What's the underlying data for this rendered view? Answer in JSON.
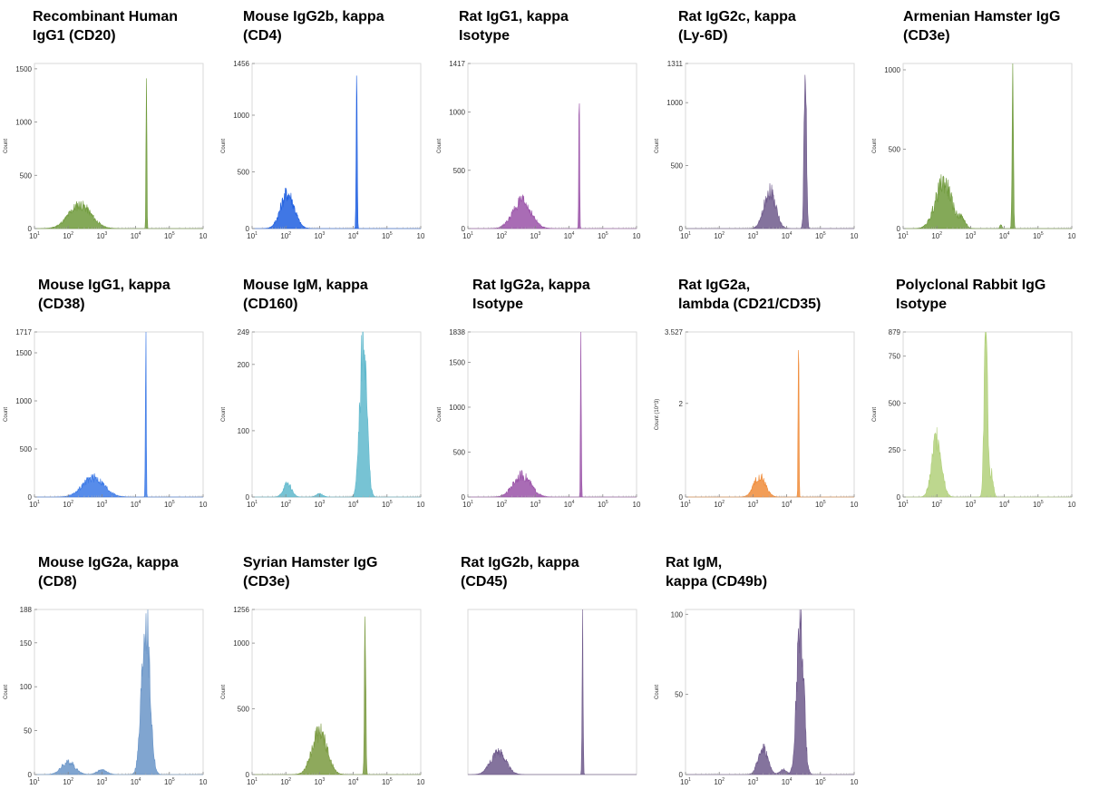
{
  "chart_data": [
    {
      "type": "area",
      "title": [
        "Recombinant Human",
        "IgG1 (CD20)"
      ],
      "ylabel": "Count",
      "yticks": [
        "0",
        "500",
        "1000",
        "1500"
      ],
      "ytick_values": [
        0,
        500,
        1000,
        1500
      ],
      "ymax": 1550,
      "xticks": [
        "10",
        "10",
        "10",
        "10",
        "10",
        "10"
      ],
      "xtick_exponents": [
        "1",
        "2",
        "3",
        "4",
        "5",
        ""
      ],
      "xlim": [
        1,
        6
      ],
      "color": "#6f9a3b",
      "peaks": [
        {
          "center": 2.35,
          "height": 220,
          "width": 0.33
        },
        {
          "center": 4.32,
          "height": 1500,
          "width": 0.012
        }
      ]
    },
    {
      "type": "area",
      "title": [
        "Mouse IgG2b, kappa",
        "(CD4)"
      ],
      "ylabel": "Count",
      "yticks": [
        "0",
        "500",
        "1000",
        "1456"
      ],
      "ytick_values": [
        0,
        500,
        1000,
        1456
      ],
      "ymax": 1456,
      "xticks": [
        "10",
        "10",
        "10",
        "10",
        "10",
        "10"
      ],
      "xtick_exponents": [
        "1",
        "2",
        "3",
        "4",
        "5",
        ""
      ],
      "xlim": [
        1,
        6
      ],
      "color": "#1f5fe0",
      "peaks": [
        {
          "center": 2.05,
          "height": 310,
          "width": 0.2
        },
        {
          "center": 4.1,
          "height": 1420,
          "width": 0.015
        }
      ]
    },
    {
      "type": "area",
      "title": [
        "Rat IgG1, kappa",
        "Isotype"
      ],
      "ylabel": "Count",
      "yticks": [
        "0",
        "500",
        "1000",
        "1417"
      ],
      "ytick_values": [
        0,
        500,
        1000,
        1417
      ],
      "ymax": 1417,
      "xticks": [
        "10",
        "10",
        "10",
        "10",
        "10",
        "10"
      ],
      "xtick_exponents": [
        "1",
        "2",
        "3",
        "4",
        "5",
        ""
      ],
      "xlim": [
        1,
        6
      ],
      "color": "#9a52a8",
      "peaks": [
        {
          "center": 2.6,
          "height": 230,
          "width": 0.27
        },
        {
          "center": 4.3,
          "height": 1410,
          "width": 0.012
        }
      ]
    },
    {
      "type": "area",
      "title": [
        "Rat IgG2c, kappa",
        "(Ly-6D)"
      ],
      "ylabel": "Count",
      "yticks": [
        "0",
        "500",
        "1000",
        "1311"
      ],
      "ytick_values": [
        0,
        500,
        1000,
        1311
      ],
      "ymax": 1311,
      "xticks": [
        "10",
        "10",
        "10",
        "10",
        "10",
        "10"
      ],
      "xtick_exponents": [
        "1",
        "2",
        "3",
        "4",
        "5",
        ""
      ],
      "xlim": [
        1,
        6
      ],
      "color": "#6f5a8c",
      "peaks": [
        {
          "center": 3.5,
          "height": 300,
          "width": 0.17
        },
        {
          "center": 4.55,
          "height": 1290,
          "width": 0.035
        }
      ]
    },
    {
      "type": "area",
      "title": [
        "Armenian Hamster IgG",
        "(CD3e)"
      ],
      "ylabel": "Count",
      "yticks": [
        "0",
        "500",
        "1000"
      ],
      "ytick_values": [
        0,
        500,
        1000
      ],
      "ymax": 1040,
      "xticks": [
        "10",
        "10",
        "10",
        "10",
        "10",
        "10"
      ],
      "xtick_exponents": [
        "1",
        "2",
        "3",
        "4",
        "5",
        ""
      ],
      "xlim": [
        1,
        6
      ],
      "color": "#6f9a3b",
      "peaks": [
        {
          "center": 2.2,
          "height": 290,
          "width": 0.24
        },
        {
          "center": 2.75,
          "height": 50,
          "width": 0.1
        },
        {
          "center": 3.9,
          "height": 25,
          "width": 0.03
        },
        {
          "center": 4.25,
          "height": 1000,
          "width": 0.02
        }
      ]
    },
    {
      "type": "area",
      "title": [
        "Mouse IgG1, kappa",
        "(CD38)"
      ],
      "ylabel": "Count",
      "yticks": [
        "0",
        "500",
        "1000",
        "1500",
        "1717"
      ],
      "ytick_values": [
        0,
        500,
        1000,
        1500,
        1717
      ],
      "ymax": 1717,
      "xticks": [
        "10",
        "10",
        "10",
        "10",
        "10",
        "10"
      ],
      "xtick_exponents": [
        "1",
        "2",
        "3",
        "4",
        "5",
        ""
      ],
      "xlim": [
        1,
        6
      ],
      "color": "#3a78e6",
      "peaks": [
        {
          "center": 2.75,
          "height": 200,
          "width": 0.32
        },
        {
          "center": 4.3,
          "height": 1680,
          "width": 0.012
        }
      ]
    },
    {
      "type": "area",
      "title": [
        "Mouse IgM, kappa",
        "(CD160)"
      ],
      "ylabel": "Count",
      "yticks": [
        "0",
        "100",
        "200",
        "249"
      ],
      "ytick_values": [
        0,
        100,
        200,
        249
      ],
      "ymax": 249,
      "xticks": [
        "10",
        "10",
        "10",
        "10",
        "10",
        "10"
      ],
      "xtick_exponents": [
        "1",
        "2",
        "3",
        "4",
        "5",
        ""
      ],
      "xlim": [
        1,
        6
      ],
      "color": "#5fb8cc",
      "peaks": [
        {
          "center": 2.05,
          "height": 20,
          "width": 0.12
        },
        {
          "center": 3.0,
          "height": 5,
          "width": 0.1
        },
        {
          "center": 4.3,
          "height": 245,
          "width": 0.1
        }
      ]
    },
    {
      "type": "area",
      "title": [
        "Rat IgG2a, kappa",
        "Isotype"
      ],
      "ylabel": "Count",
      "yticks": [
        "0",
        "500",
        "1000",
        "1500",
        "1838"
      ],
      "ytick_values": [
        0,
        500,
        1000,
        1500,
        1838
      ],
      "ymax": 1838,
      "xticks": [
        "10",
        "10",
        "10",
        "10",
        "10",
        "10"
      ],
      "xtick_exponents": [
        "1",
        "2",
        "3",
        "4",
        "5",
        ""
      ],
      "xlim": [
        1,
        6
      ],
      "color": "#9a52a8",
      "peaks": [
        {
          "center": 2.6,
          "height": 240,
          "width": 0.26
        },
        {
          "center": 4.35,
          "height": 1820,
          "width": 0.012
        }
      ]
    },
    {
      "type": "area",
      "title": [
        "Rat IgG2a,",
        "lambda (CD21/CD35)"
      ],
      "ylabel": "Count (10^3)",
      "yticks": [
        "0",
        "2",
        "3.527"
      ],
      "ytick_values": [
        0,
        2,
        3.527
      ],
      "ymax": 3.527,
      "xticks": [
        "10",
        "10",
        "10",
        "10",
        "10",
        "10"
      ],
      "xtick_exponents": [
        "1",
        "2",
        "3",
        "4",
        "5",
        ""
      ],
      "xlim": [
        1,
        6
      ],
      "color": "#f08c3a",
      "peaks": [
        {
          "center": 3.2,
          "height": 0.45,
          "width": 0.17
        },
        {
          "center": 4.35,
          "height": 3.5,
          "width": 0.012
        }
      ]
    },
    {
      "type": "area",
      "title": [
        "Polyclonal Rabbit IgG",
        "Isotype"
      ],
      "ylabel": "Count",
      "yticks": [
        "0",
        "250",
        "500",
        "750",
        "879"
      ],
      "ytick_values": [
        0,
        250,
        500,
        750,
        879
      ],
      "ymax": 879,
      "xticks": [
        "10",
        "10",
        "10",
        "10",
        "10",
        "10"
      ],
      "xtick_exponents": [
        "1",
        "2",
        "3",
        "4",
        "5",
        ""
      ],
      "xlim": [
        1,
        6
      ],
      "color": "#b1d07a",
      "peaks": [
        {
          "center": 2.0,
          "height": 320,
          "width": 0.14
        },
        {
          "center": 3.45,
          "height": 870,
          "width": 0.05
        },
        {
          "center": 3.62,
          "height": 140,
          "width": 0.05
        }
      ]
    },
    {
      "type": "area",
      "title": [
        "Mouse IgG2a, kappa",
        "(CD8)"
      ],
      "ylabel": "Count",
      "yticks": [
        "0",
        "50",
        "100",
        "150",
        "188"
      ],
      "ytick_values": [
        0,
        50,
        100,
        150,
        188
      ],
      "ymax": 188,
      "xticks": [
        "10",
        "10",
        "10",
        "10",
        "10",
        "10"
      ],
      "xtick_exponents": [
        "1",
        "2",
        "3",
        "4",
        "5",
        ""
      ],
      "xlim": [
        1,
        6
      ],
      "color": "#6a95c8",
      "peaks": [
        {
          "center": 2.0,
          "height": 14,
          "width": 0.2
        },
        {
          "center": 3.0,
          "height": 5,
          "width": 0.15
        },
        {
          "center": 4.3,
          "height": 180,
          "width": 0.12
        }
      ]
    },
    {
      "type": "area",
      "title": [
        "Syrian Hamster IgG",
        "(CD3e)"
      ],
      "ylabel": "Count",
      "yticks": [
        "0",
        "500",
        "1000",
        "1256"
      ],
      "ytick_values": [
        0,
        500,
        1000,
        1256
      ],
      "ymax": 1256,
      "xticks": [
        "10",
        "10",
        "10",
        "10",
        "10",
        "10"
      ],
      "xtick_exponents": [
        "1",
        "2",
        "3",
        "4",
        "5",
        ""
      ],
      "xlim": [
        1,
        6
      ],
      "color": "#7a9a3f",
      "peaks": [
        {
          "center": 3.0,
          "height": 320,
          "width": 0.22
        },
        {
          "center": 4.35,
          "height": 1240,
          "width": 0.02
        }
      ]
    },
    {
      "type": "area",
      "title": [
        "Rat IgG2b, kappa",
        "(CD45)"
      ],
      "ylabel": "",
      "yticks": [],
      "ytick_values": [],
      "ymax": 100,
      "xticks": [],
      "xtick_exponents": [],
      "xlim": [
        1,
        6
      ],
      "color": "#6f5a8c",
      "peaks": [
        {
          "center": 1.9,
          "height": 14,
          "width": 0.22
        },
        {
          "center": 4.4,
          "height": 100,
          "width": 0.015
        }
      ]
    },
    {
      "type": "area",
      "title": [
        "Rat IgM,",
        "kappa (CD49b)"
      ],
      "ylabel": "Count",
      "yticks": [
        "0",
        "50",
        "100"
      ],
      "ytick_values": [
        0,
        50,
        100
      ],
      "ymax": 103,
      "xticks": [
        "10",
        "10",
        "10",
        "10",
        "10",
        "10"
      ],
      "xtick_exponents": [
        "1",
        "2",
        "3",
        "4",
        "5",
        ""
      ],
      "xlim": [
        1,
        6
      ],
      "color": "#6f5a8c",
      "peaks": [
        {
          "center": 3.3,
          "height": 17,
          "width": 0.14
        },
        {
          "center": 3.9,
          "height": 3,
          "width": 0.1
        },
        {
          "center": 4.4,
          "height": 100,
          "width": 0.1
        }
      ]
    }
  ]
}
